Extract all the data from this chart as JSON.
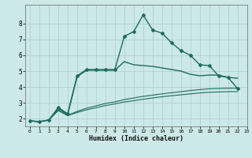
{
  "title": "",
  "xlabel": "Humidex (Indice chaleur)",
  "ylabel": "",
  "bg_color": "#cce8e8",
  "grid_color": "#aacfcf",
  "line_color": "#1e6b5e",
  "xlim": [
    -0.5,
    23
  ],
  "ylim": [
    1.5,
    9.2
  ],
  "xticks": [
    0,
    1,
    2,
    3,
    4,
    5,
    6,
    7,
    8,
    9,
    10,
    11,
    12,
    13,
    14,
    15,
    16,
    17,
    18,
    19,
    20,
    21,
    22,
    23
  ],
  "yticks": [
    2,
    3,
    4,
    5,
    6,
    7,
    8
  ],
  "series": [
    {
      "x": [
        0,
        1,
        2,
        3,
        4,
        5,
        6,
        7,
        8,
        9,
        10,
        11,
        12,
        13,
        14,
        15,
        16,
        17,
        18,
        19,
        20,
        21,
        22
      ],
      "y": [
        1.85,
        1.8,
        1.9,
        2.7,
        2.3,
        4.7,
        5.1,
        5.1,
        5.1,
        5.1,
        7.2,
        7.5,
        8.55,
        7.6,
        7.4,
        6.8,
        6.3,
        6.0,
        5.4,
        5.35,
        4.7,
        4.6,
        3.9
      ],
      "marker": "D",
      "markersize": 2.0,
      "linewidth": 1.0,
      "zorder": 3
    },
    {
      "x": [
        0,
        1,
        2,
        3,
        4,
        5,
        6,
        7,
        8,
        9,
        10,
        11,
        12,
        13,
        14,
        15,
        16,
        17,
        18,
        19,
        20,
        21,
        22
      ],
      "y": [
        1.85,
        1.8,
        1.9,
        2.65,
        2.25,
        4.65,
        5.05,
        5.05,
        5.05,
        5.05,
        5.6,
        5.4,
        5.35,
        5.3,
        5.2,
        5.1,
        5.0,
        4.8,
        4.7,
        4.75,
        4.75,
        4.6,
        4.55
      ],
      "marker": null,
      "markersize": 0,
      "linewidth": 1.0,
      "zorder": 2
    },
    {
      "x": [
        0,
        1,
        2,
        3,
        4,
        5,
        6,
        7,
        8,
        9,
        10,
        11,
        12,
        13,
        14,
        15,
        16,
        17,
        18,
        19,
        20,
        21,
        22
      ],
      "y": [
        1.85,
        1.8,
        1.9,
        2.55,
        2.2,
        2.45,
        2.65,
        2.8,
        2.95,
        3.05,
        3.2,
        3.3,
        3.4,
        3.48,
        3.56,
        3.63,
        3.7,
        3.77,
        3.83,
        3.88,
        3.9,
        3.92,
        3.92
      ],
      "marker": null,
      "markersize": 0,
      "linewidth": 0.8,
      "zorder": 2
    },
    {
      "x": [
        0,
        1,
        2,
        3,
        4,
        5,
        6,
        7,
        8,
        9,
        10,
        11,
        12,
        13,
        14,
        15,
        16,
        17,
        18,
        19,
        20,
        21,
        22
      ],
      "y": [
        1.85,
        1.8,
        1.9,
        2.5,
        2.18,
        2.38,
        2.55,
        2.68,
        2.82,
        2.92,
        3.05,
        3.13,
        3.22,
        3.3,
        3.38,
        3.44,
        3.5,
        3.56,
        3.62,
        3.66,
        3.68,
        3.7,
        3.7
      ],
      "marker": null,
      "markersize": 0,
      "linewidth": 0.8,
      "zorder": 2
    }
  ]
}
